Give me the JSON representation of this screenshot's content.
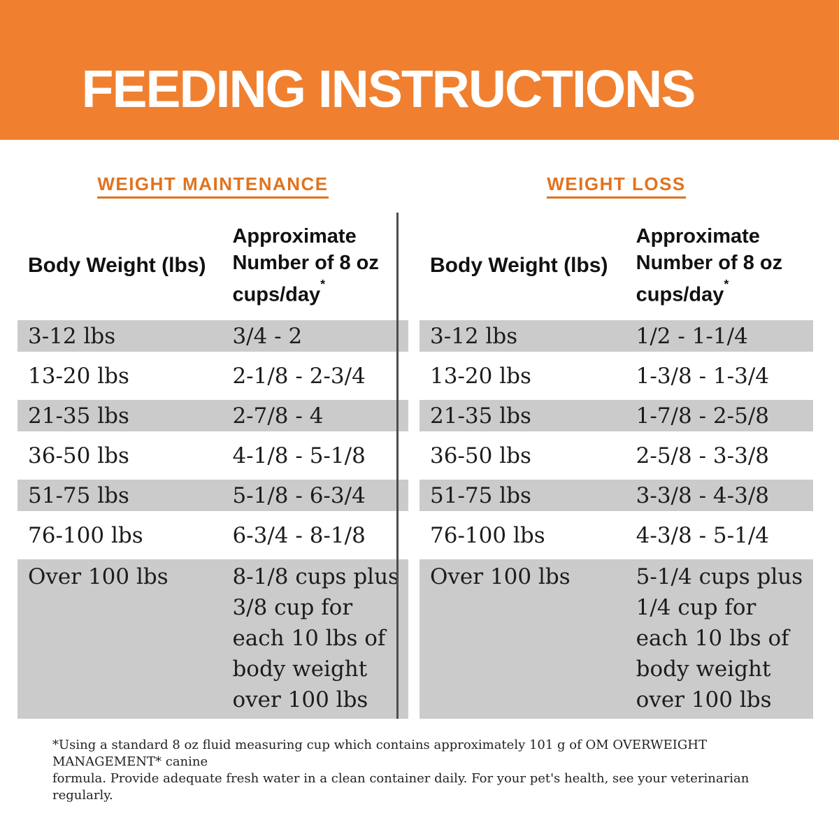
{
  "banner": {
    "title": "FEEDING INSTRUCTIONS"
  },
  "column_headers": {
    "body_weight": "Body Weight (lbs)",
    "cups_line1": "Approximate",
    "cups_line2": "Number of 8 oz",
    "cups_line3": "cups/day",
    "asterisk": "*"
  },
  "tables": [
    {
      "heading": "WEIGHT MAINTENANCE",
      "rows": [
        {
          "weight": "3-12 lbs",
          "cups": "3/4 - 2"
        },
        {
          "weight": "13-20 lbs",
          "cups": "2-1/8 - 2-3/4"
        },
        {
          "weight": "21-35 lbs",
          "cups": "2-7/8 - 4"
        },
        {
          "weight": "36-50 lbs",
          "cups": "4-1/8 - 5-1/8"
        },
        {
          "weight": "51-75 lbs",
          "cups": "5-1/8 - 6-3/4"
        },
        {
          "weight": "76-100 lbs",
          "cups": "6-3/4 - 8-1/8"
        },
        {
          "weight": "Over 100 lbs",
          "cups": "8-1/8 cups plus\n3/8 cup for\neach 10 lbs of\nbody weight\nover 100 lbs"
        }
      ]
    },
    {
      "heading": "WEIGHT LOSS",
      "rows": [
        {
          "weight": "3-12 lbs",
          "cups": "1/2 - 1-1/4"
        },
        {
          "weight": "13-20 lbs",
          "cups": "1-3/8 - 1-3/4"
        },
        {
          "weight": "21-35 lbs",
          "cups": "1-7/8 - 2-5/8"
        },
        {
          "weight": "36-50 lbs",
          "cups": "2-5/8 - 3-3/8"
        },
        {
          "weight": "51-75 lbs",
          "cups": "3-3/8 - 4-3/8"
        },
        {
          "weight": "76-100 lbs",
          "cups": "4-3/8 - 5-1/4"
        },
        {
          "weight": "Over 100 lbs",
          "cups": "5-1/4 cups plus\n1/4 cup for\neach 10 lbs of\nbody weight\nover 100 lbs"
        }
      ]
    }
  ],
  "footnote": "*Using a standard 8 oz fluid measuring cup which contains approximately 101 g of OM OVERWEIGHT MANAGEMENT* canine\nformula. Provide adequate fresh water in a clean container daily. For your pet's health, see your veterinarian regularly.",
  "colors": {
    "banner_orange": "#F0802F",
    "heading_orange": "#E0731F",
    "row_gray": "#CBCBCB",
    "divider_gray": "#4D4D4D",
    "text_black": "#1C1C1C",
    "title_white": "#FFFFFF"
  }
}
